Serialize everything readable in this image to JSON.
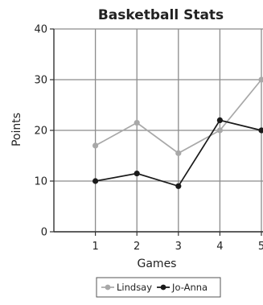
{
  "chart_data": {
    "type": "line",
    "title": "Basketball Stats",
    "xlabel": "Games",
    "ylabel": "Points",
    "x": [
      1,
      2,
      3,
      4,
      5
    ],
    "xlim": [
      0,
      5
    ],
    "ylim": [
      0,
      40
    ],
    "yticks": [
      0,
      10,
      20,
      30,
      40
    ],
    "xticks": [
      1,
      2,
      3,
      4,
      5
    ],
    "grid": true,
    "legend_position": "bottom",
    "series": [
      {
        "name": "Lindsay",
        "values": [
          17,
          21.5,
          15.5,
          20,
          30
        ],
        "color": "#a8a8a8"
      },
      {
        "name": "Jo-Anna",
        "values": [
          10,
          11.5,
          9,
          22,
          20
        ],
        "color": "#1a1a1a"
      }
    ]
  }
}
